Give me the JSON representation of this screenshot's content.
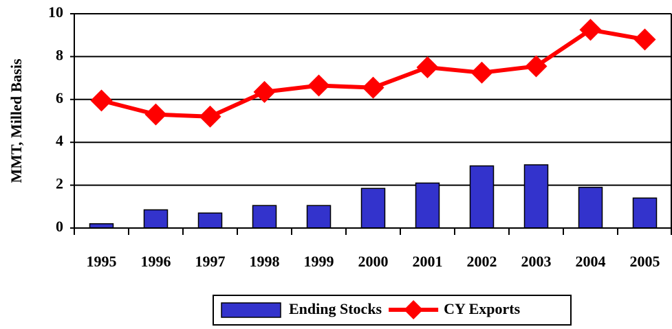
{
  "chart_data": {
    "type": "combo",
    "y_label": "MMT, Milled Basis",
    "categories": [
      "1995",
      "1996",
      "1997",
      "1998",
      "1999",
      "2000",
      "2001",
      "2002",
      "2003",
      "2004",
      "2005"
    ],
    "series": [
      {
        "name": "Ending Stocks",
        "type": "bar",
        "color": "#3333cc",
        "values": [
          0.2,
          0.85,
          0.7,
          1.05,
          1.05,
          1.85,
          2.1,
          2.9,
          2.95,
          1.9,
          1.4
        ]
      },
      {
        "name": "CY Exports",
        "type": "line",
        "color": "#ff0000",
        "values": [
          5.95,
          5.3,
          5.2,
          6.35,
          6.65,
          6.55,
          7.5,
          7.25,
          7.55,
          9.25,
          8.8
        ]
      }
    ],
    "ylim": [
      0,
      10
    ],
    "yticks": [
      0,
      2,
      4,
      6,
      8,
      10
    ],
    "grid": true,
    "legend": "bottom"
  }
}
